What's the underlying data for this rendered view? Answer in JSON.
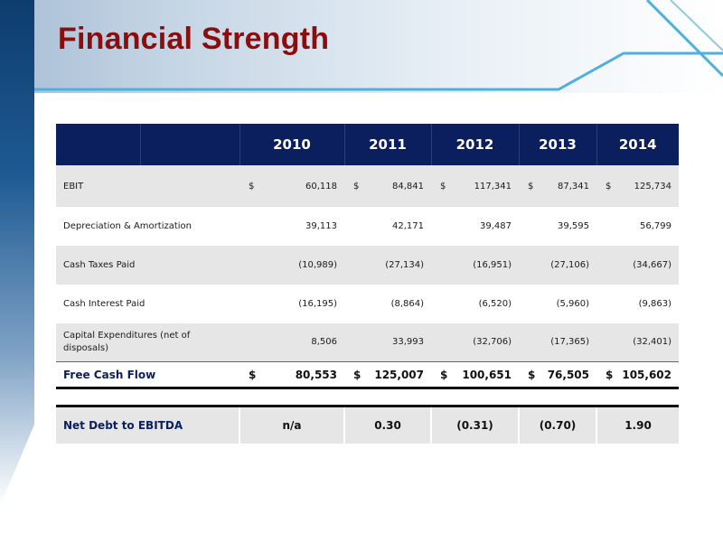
{
  "page": {
    "title": "Financial Strength"
  },
  "colors": {
    "title": "#8b0d0d",
    "table_header": "#0b1f5e",
    "row_shade": "#e6e6e6",
    "accent_line": "#4fb0de"
  },
  "table": {
    "years": [
      "2010",
      "2011",
      "2012",
      "2013",
      "2014"
    ],
    "currency_symbol": "$",
    "rows": [
      {
        "label": "EBIT",
        "values": [
          "60,118",
          "84,841",
          "117,341",
          "87,341",
          "125,734"
        ]
      },
      {
        "label": "Depreciation & Amortization",
        "values": [
          "39,113",
          "42,171",
          "39,487",
          "39,595",
          "56,799"
        ]
      },
      {
        "label": "Cash Taxes Paid",
        "values": [
          "(10,989)",
          "(27,134)",
          "(16,951)",
          "(27,106)",
          "(34,667)"
        ]
      },
      {
        "label": "Cash Interest Paid",
        "values": [
          "(16,195)",
          "(8,864)",
          "(6,520)",
          "(5,960)",
          "(9,863)"
        ]
      },
      {
        "label": "Capital Expenditures (net of disposals)",
        "values": [
          "8,506",
          "33,993",
          "(32,706)",
          "(17,365)",
          "(32,401)"
        ]
      }
    ],
    "free_cash_flow": {
      "label": "Free Cash Flow",
      "values": [
        "80,553",
        "125,007",
        "100,651",
        "76,505",
        "105,602"
      ]
    },
    "net_debt": {
      "label": "Net Debt to EBITDA",
      "values": [
        "n/a",
        "0.30",
        "(0.31)",
        "(0.70)",
        "1.90"
      ]
    }
  }
}
